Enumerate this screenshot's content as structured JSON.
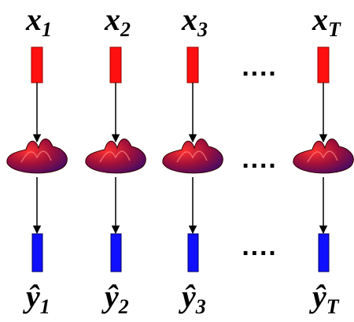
{
  "columns": [
    {
      "input": "x",
      "input_sub": "1",
      "output": "ŷ",
      "output_sub": "1"
    },
    {
      "input": "x",
      "input_sub": "2",
      "output": "ŷ",
      "output_sub": "2"
    },
    {
      "input": "x",
      "input_sub": "3",
      "output": "ŷ",
      "output_sub": "3"
    },
    {
      "input": "x",
      "input_sub": "T",
      "output": "ŷ",
      "output_sub": "T"
    }
  ],
  "ellipsis": "····"
}
